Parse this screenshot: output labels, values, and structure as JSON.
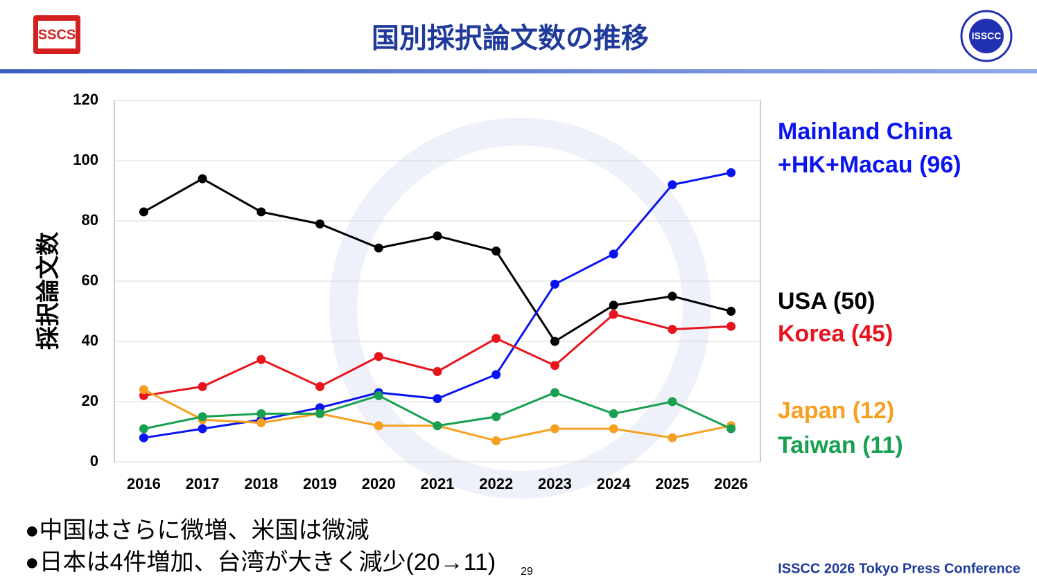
{
  "logo_left": "SSCS",
  "logo_right": "ISSCC",
  "chart_data": {
    "type": "line",
    "title": "国別採択論文数の推移",
    "y_label": "採択論文数",
    "categories": [
      "2016",
      "2017",
      "2018",
      "2019",
      "2020",
      "2021",
      "2022",
      "2023",
      "2024",
      "2025",
      "2026"
    ],
    "series": [
      {
        "name": "Mainland China +HK+Macau (96)",
        "color": "#0a14f0",
        "values": [
          8,
          11,
          14,
          18,
          23,
          21,
          29,
          59,
          69,
          92,
          96
        ]
      },
      {
        "name": "USA (50)",
        "color": "#000000",
        "values": [
          83,
          94,
          83,
          79,
          71,
          75,
          70,
          40,
          52,
          55,
          50
        ]
      },
      {
        "name": "Korea (45)",
        "color": "#e8141c",
        "values": [
          22,
          25,
          34,
          25,
          35,
          30,
          41,
          32,
          49,
          44,
          45
        ]
      },
      {
        "name": "Japan (12)",
        "color": "#f5a020",
        "values": [
          24,
          14,
          13,
          16,
          12,
          12,
          7,
          11,
          11,
          8,
          12
        ]
      },
      {
        "name": "Taiwan (11)",
        "color": "#18a050",
        "values": [
          11,
          15,
          16,
          16,
          22,
          12,
          15,
          23,
          16,
          20,
          11
        ]
      }
    ],
    "ylim": [
      0,
      120
    ],
    "yticks": [
      0,
      20,
      40,
      60,
      80,
      100,
      120
    ],
    "grid": true
  },
  "bullets": [
    "中国はさらに微増、米国は微減",
    "日本は4件増加、台湾が大きく減少(20→11)"
  ],
  "page_number": "29",
  "footer": "ISSCC 2026 Tokyo Press Conference"
}
